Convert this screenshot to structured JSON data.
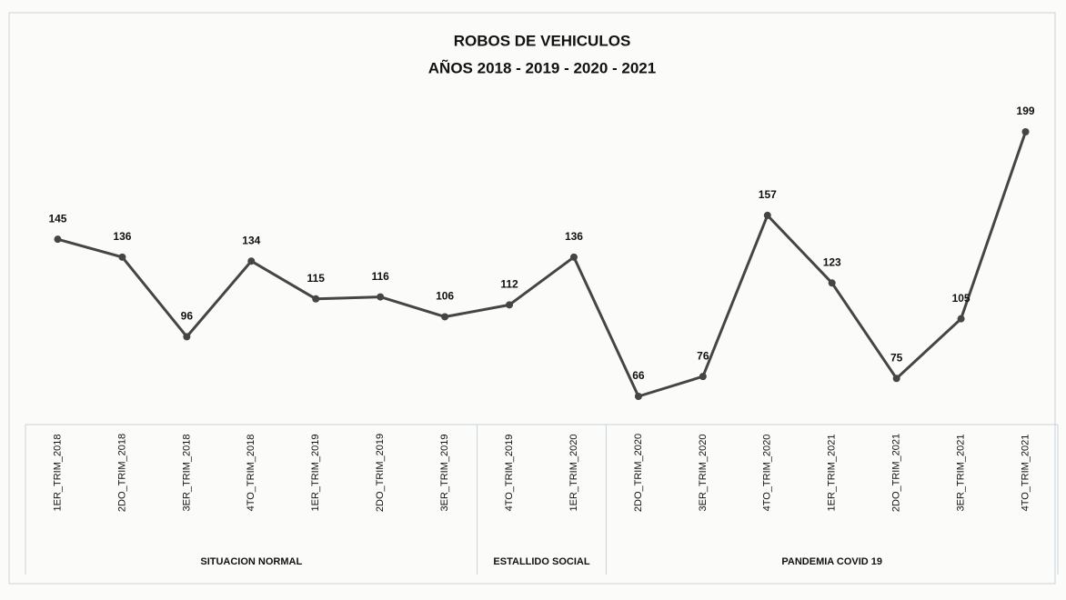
{
  "chart_data": {
    "type": "line",
    "title": "ROBOS DE VEHICULOS",
    "subtitle": "AÑOS 2018 - 2019 - 2020 - 2021",
    "groups": [
      {
        "name": "SITUACION NORMAL",
        "categories": [
          "1ER_TRIM_2018",
          "2DO_TRIM_2018",
          "3ER_TRIM_2018",
          "4TO_TRIM_2018",
          "1ER_TRIM_2019",
          "2DO_TRIM_2019",
          "3ER_TRIM_2019"
        ]
      },
      {
        "name": "ESTALLIDO SOCIAL",
        "categories": [
          "4TO_TRIM_2019",
          "1ER_TRIM_2020"
        ]
      },
      {
        "name": "PANDEMIA COVID 19",
        "categories": [
          "2DO_TRIM_2020",
          "3ER_TRIM_2020",
          "4TO_TRIM_2020",
          "1ER_TRIM_2021",
          "2DO_TRIM_2021",
          "3ER_TRIM_2021",
          "4TO_TRIM_2021"
        ]
      }
    ],
    "values": [
      145,
      136,
      96,
      134,
      115,
      116,
      106,
      112,
      136,
      66,
      76,
      157,
      123,
      75,
      105,
      199
    ],
    "color": "#454545"
  }
}
